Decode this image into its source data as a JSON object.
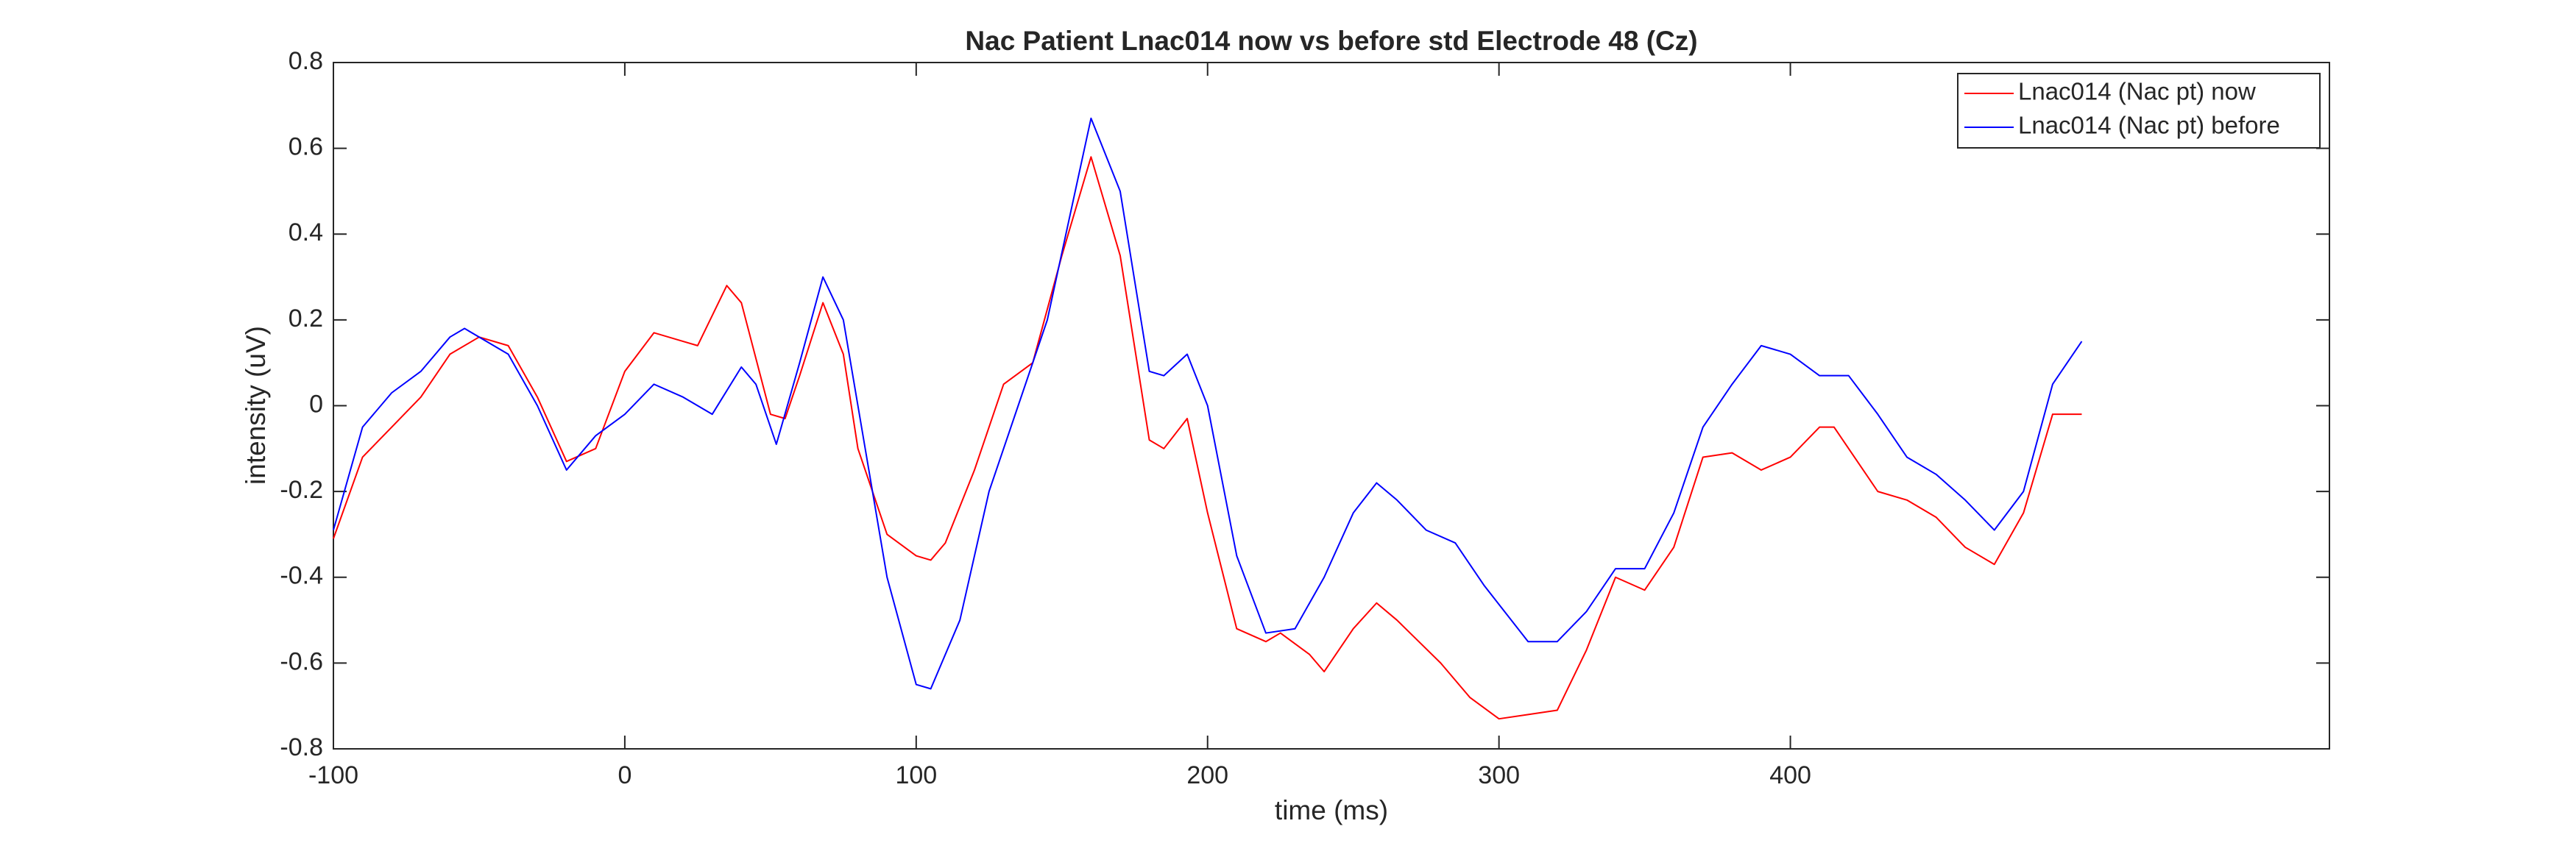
{
  "chart_data": {
    "type": "line",
    "title": "Nac Patient Lnac014 now vs before std Electrode 48 (Cz)",
    "xlabel": "time (ms)",
    "ylabel": "intensity (uV)",
    "xlim": [
      -100,
      585
    ],
    "ylim": [
      -0.8,
      0.8
    ],
    "xticks": [
      -100,
      0,
      100,
      200,
      300,
      400
    ],
    "yticks": [
      -0.8,
      -0.6,
      -0.4,
      -0.2,
      0,
      0.2,
      0.4,
      0.6,
      0.8
    ],
    "legend": "northeast",
    "box": true,
    "series": [
      {
        "name": "Lnac014 (Nac pt) now",
        "color": "#ff0000",
        "x": [
          -100,
          -90,
          -80,
          -70,
          -60,
          -50,
          -40,
          -30,
          -20,
          -10,
          0,
          10,
          20,
          25,
          35,
          40,
          50,
          55,
          60,
          68,
          75,
          80,
          90,
          100,
          105,
          110,
          120,
          130,
          140,
          150,
          160,
          170,
          180,
          185,
          193,
          200,
          210,
          220,
          225,
          235,
          240,
          250,
          258,
          265,
          280,
          290,
          300,
          310,
          320,
          330,
          340,
          350,
          360,
          370,
          380,
          390,
          400,
          410,
          415,
          430,
          440,
          450,
          460,
          470,
          480,
          490,
          500
        ],
        "values": [
          -0.31,
          -0.12,
          -0.05,
          0.02,
          0.12,
          0.16,
          0.14,
          0.02,
          -0.13,
          -0.1,
          0.08,
          0.17,
          0.15,
          0.14,
          0.28,
          0.24,
          -0.02,
          -0.03,
          0.07,
          0.24,
          0.12,
          -0.1,
          -0.3,
          -0.35,
          -0.36,
          -0.32,
          -0.15,
          0.05,
          0.1,
          0.35,
          0.58,
          0.35,
          -0.08,
          -0.1,
          -0.03,
          -0.25,
          -0.52,
          -0.55,
          -0.53,
          -0.58,
          -0.62,
          -0.52,
          -0.46,
          -0.5,
          -0.6,
          -0.68,
          -0.73,
          -0.72,
          -0.71,
          -0.57,
          -0.4,
          -0.43,
          -0.33,
          -0.12,
          -0.11,
          -0.15,
          -0.12,
          -0.05,
          -0.05,
          -0.2,
          -0.22,
          -0.26,
          -0.33,
          -0.37,
          -0.25,
          -0.02,
          -0.02
        ]
      },
      {
        "name": "Lnac014 (Nac pt) before",
        "color": "#0000ff",
        "x": [
          -100,
          -90,
          -80,
          -70,
          -60,
          -55,
          -40,
          -30,
          -20,
          -10,
          0,
          10,
          20,
          30,
          40,
          45,
          52,
          60,
          68,
          75,
          80,
          90,
          100,
          105,
          115,
          125,
          135,
          145,
          160,
          170,
          180,
          185,
          193,
          200,
          210,
          220,
          230,
          240,
          250,
          258,
          265,
          275,
          285,
          295,
          310,
          320,
          330,
          340,
          350,
          360,
          370,
          380,
          390,
          400,
          410,
          420,
          430,
          440,
          450,
          460,
          470,
          480,
          490,
          500
        ],
        "values": [
          -0.29,
          -0.05,
          0.03,
          0.08,
          0.16,
          0.18,
          0.12,
          0,
          -0.15,
          -0.07,
          -0.02,
          0.05,
          0.02,
          -0.02,
          0.09,
          0.05,
          -0.09,
          0.1,
          0.3,
          0.2,
          0,
          -0.4,
          -0.65,
          -0.66,
          -0.5,
          -0.2,
          0,
          0.2,
          0.67,
          0.5,
          0.08,
          0.07,
          0.12,
          0,
          -0.35,
          -0.53,
          -0.52,
          -0.4,
          -0.25,
          -0.18,
          -0.22,
          -0.29,
          -0.32,
          -0.42,
          -0.55,
          -0.55,
          -0.48,
          -0.38,
          -0.38,
          -0.25,
          -0.05,
          0.05,
          0.14,
          0.12,
          0.07,
          0.07,
          -0.02,
          -0.12,
          -0.16,
          -0.22,
          -0.29,
          -0.2,
          0.05,
          0.15
        ]
      }
    ]
  }
}
